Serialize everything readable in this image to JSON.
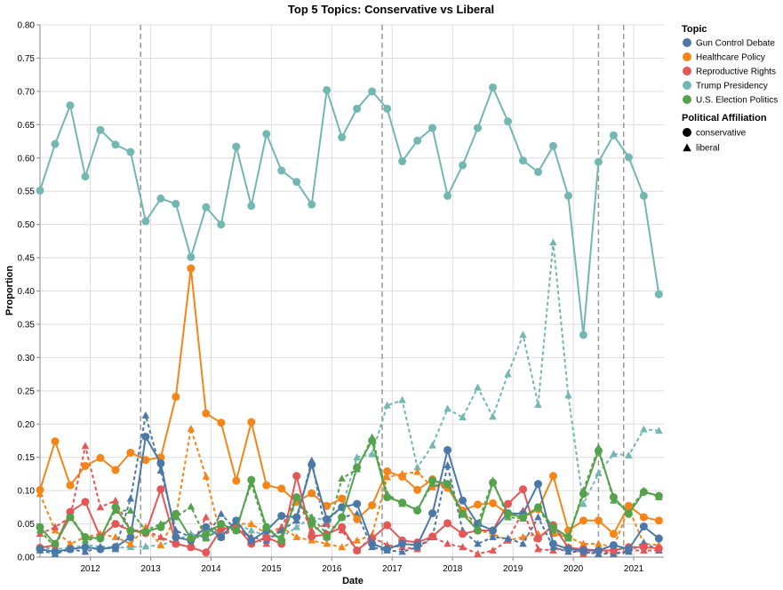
{
  "chart_data": {
    "type": "line",
    "title": "Top 5 Topics: Conservative vs Liberal",
    "xlabel": "Date",
    "ylabel": "Proportion",
    "ylim": [
      0,
      0.8
    ],
    "y_ticks": [
      "0.00",
      "0.05",
      "0.10",
      "0.15",
      "0.20",
      "0.25",
      "0.30",
      "0.35",
      "0.40",
      "0.45",
      "0.50",
      "0.55",
      "0.60",
      "0.65",
      "0.70",
      "0.75",
      "0.80"
    ],
    "x_ticks": [
      "2012",
      "2013",
      "2014",
      "2015",
      "2016",
      "2017",
      "2018",
      "2019",
      "2020",
      "2021"
    ],
    "xlim": [
      "2011-03",
      "2021-07"
    ],
    "vertical_rules": [
      "2012-11",
      "2016-11",
      "2020-06",
      "2020-11"
    ],
    "grid": true,
    "legend_position": "top-right",
    "legend": {
      "topic_title": "Topic",
      "affiliation_title": "Political Affiliation",
      "topics": [
        {
          "name": "Gun Control Debate",
          "color": "#4c78a8"
        },
        {
          "name": "Healthcare Policy",
          "color": "#f58518"
        },
        {
          "name": "Reproductive Rights",
          "color": "#e45756"
        },
        {
          "name": "Trump Presidency",
          "color": "#72b7b2"
        },
        {
          "name": "U.S. Election Politics",
          "color": "#54a24b"
        }
      ],
      "affiliations": [
        {
          "name": "conservative",
          "shape": "circle",
          "dash": "solid"
        },
        {
          "name": "liberal",
          "shape": "triangle",
          "dash": "dashed"
        }
      ]
    },
    "x": [
      "2011-03",
      "2011-06",
      "2011-09",
      "2011-12",
      "2012-03",
      "2012-06",
      "2012-09",
      "2012-12",
      "2013-03",
      "2013-06",
      "2013-09",
      "2013-12",
      "2014-03",
      "2014-06",
      "2014-09",
      "2014-12",
      "2015-03",
      "2015-06",
      "2015-09",
      "2015-12",
      "2016-03",
      "2016-06",
      "2016-09",
      "2016-12",
      "2017-03",
      "2017-06",
      "2017-09",
      "2017-12",
      "2018-03",
      "2018-06",
      "2018-09",
      "2018-12",
      "2019-03",
      "2019-06",
      "2019-09",
      "2019-12",
      "2020-03",
      "2020-06",
      "2020-09",
      "2020-12",
      "2021-03",
      "2021-06"
    ],
    "series": [
      {
        "topic": "Trump Presidency",
        "affiliation": "conservative",
        "values": [
          0.551,
          0.621,
          0.679,
          0.572,
          0.642,
          0.62,
          0.609,
          0.505,
          0.539,
          0.531,
          0.451,
          0.526,
          0.5,
          0.617,
          0.528,
          0.636,
          0.581,
          0.564,
          0.53,
          0.702,
          0.631,
          0.674,
          0.7,
          0.674,
          0.595,
          0.626,
          0.645,
          0.543,
          0.589,
          0.645,
          0.706,
          0.655,
          0.596,
          0.579,
          0.618,
          0.543,
          0.334,
          0.594,
          0.634,
          0.601,
          0.543,
          0.395
        ]
      },
      {
        "topic": "Trump Presidency",
        "affiliation": "liberal",
        "values": [
          0.015,
          0.012,
          0.014,
          0.018,
          0.016,
          0.014,
          0.015,
          0.016,
          0.018,
          0.025,
          0.035,
          0.03,
          0.04,
          0.05,
          0.04,
          0.032,
          0.03,
          0.045,
          0.06,
          0.055,
          0.075,
          0.15,
          0.155,
          0.228,
          0.236,
          0.135,
          0.168,
          0.223,
          0.21,
          0.255,
          0.211,
          0.275,
          0.334,
          0.229,
          0.473,
          0.243,
          0.08,
          0.126,
          0.155,
          0.153,
          0.192,
          0.19
        ]
      },
      {
        "topic": "Healthcare Policy",
        "affiliation": "conservative",
        "values": [
          0.101,
          0.174,
          0.108,
          0.137,
          0.149,
          0.131,
          0.157,
          0.146,
          0.15,
          0.241,
          0.434,
          0.216,
          0.202,
          0.115,
          0.203,
          0.108,
          0.103,
          0.083,
          0.096,
          0.077,
          0.088,
          0.057,
          0.078,
          0.129,
          0.121,
          0.101,
          0.117,
          0.104,
          0.07,
          0.079,
          0.081,
          0.065,
          0.06,
          0.072,
          0.122,
          0.04,
          0.055,
          0.055,
          0.035,
          0.077,
          0.06,
          0.055
        ]
      },
      {
        "topic": "Healthcare Policy",
        "affiliation": "liberal",
        "values": [
          0.095,
          0.04,
          0.02,
          0.03,
          0.035,
          0.03,
          0.02,
          0.045,
          0.018,
          0.06,
          0.193,
          0.121,
          0.03,
          0.05,
          0.05,
          0.035,
          0.045,
          0.03,
          0.025,
          0.02,
          0.015,
          0.025,
          0.033,
          0.12,
          0.125,
          0.128,
          0.105,
          0.11,
          0.07,
          0.04,
          0.035,
          0.025,
          0.03,
          0.035,
          0.035,
          0.03,
          0.02,
          0.02,
          0.015,
          0.073,
          0.02,
          0.018
        ]
      },
      {
        "topic": "Reproductive Rights",
        "affiliation": "conservative",
        "values": [
          0.014,
          0.018,
          0.068,
          0.083,
          0.03,
          0.05,
          0.04,
          0.036,
          0.102,
          0.02,
          0.015,
          0.007,
          0.042,
          0.046,
          0.02,
          0.03,
          0.02,
          0.122,
          0.031,
          0.034,
          0.045,
          0.01,
          0.028,
          0.048,
          0.025,
          0.022,
          0.031,
          0.051,
          0.035,
          0.04,
          0.04,
          0.08,
          0.102,
          0.028,
          0.048,
          0.014,
          0.012,
          0.01,
          0.01,
          0.015,
          0.015,
          0.013
        ]
      },
      {
        "topic": "Reproductive Rights",
        "affiliation": "liberal",
        "values": [
          0.035,
          0.045,
          0.06,
          0.167,
          0.075,
          0.085,
          0.04,
          0.04,
          0.03,
          0.02,
          0.015,
          0.06,
          0.03,
          0.045,
          0.03,
          0.02,
          0.045,
          0.09,
          0.04,
          0.05,
          0.04,
          0.01,
          0.03,
          0.018,
          0.015,
          0.012,
          0.03,
          0.02,
          0.015,
          0.005,
          0.01,
          0.025,
          0.07,
          0.012,
          0.01,
          0.015,
          0.005,
          0.01,
          0.005,
          0.01,
          0.01,
          0.01
        ]
      },
      {
        "topic": "Gun Control Debate",
        "affiliation": "conservative",
        "values": [
          0.012,
          0.008,
          0.012,
          0.015,
          0.012,
          0.015,
          0.03,
          0.181,
          0.141,
          0.03,
          0.025,
          0.045,
          0.03,
          0.055,
          0.025,
          0.04,
          0.062,
          0.06,
          0.139,
          0.057,
          0.075,
          0.08,
          0.02,
          0.012,
          0.02,
          0.018,
          0.066,
          0.161,
          0.085,
          0.05,
          0.04,
          0.066,
          0.065,
          0.11,
          0.02,
          0.012,
          0.01,
          0.01,
          0.018,
          0.012,
          0.046,
          0.028
        ]
      },
      {
        "topic": "Gun Control Debate",
        "affiliation": "liberal",
        "values": [
          0.01,
          0.005,
          0.012,
          0.008,
          0.015,
          0.012,
          0.088,
          0.213,
          0.13,
          0.04,
          0.03,
          0.03,
          0.065,
          0.04,
          0.03,
          0.025,
          0.04,
          0.055,
          0.145,
          0.03,
          0.06,
          0.065,
          0.015,
          0.01,
          0.008,
          0.015,
          0.03,
          0.138,
          0.04,
          0.02,
          0.03,
          0.028,
          0.02,
          0.06,
          0.015,
          0.008,
          0.008,
          0.005,
          0.005,
          0.008,
          0.022,
          0.01
        ]
      },
      {
        "topic": "U.S. Election Politics",
        "affiliation": "conservative",
        "values": [
          0.045,
          0.02,
          0.06,
          0.03,
          0.028,
          0.075,
          0.04,
          0.038,
          0.045,
          0.065,
          0.028,
          0.035,
          0.05,
          0.04,
          0.116,
          0.045,
          0.025,
          0.09,
          0.05,
          0.03,
          0.06,
          0.135,
          0.175,
          0.09,
          0.082,
          0.07,
          0.115,
          0.11,
          0.065,
          0.04,
          0.112,
          0.065,
          0.06,
          0.075,
          0.045,
          0.03,
          0.095,
          0.16,
          0.09,
          0.065,
          0.098,
          0.092
        ]
      },
      {
        "topic": "U.S. Election Politics",
        "affiliation": "liberal",
        "values": [
          0.04,
          0.015,
          0.065,
          0.025,
          0.03,
          0.07,
          0.07,
          0.04,
          0.05,
          0.06,
          0.076,
          0.028,
          0.045,
          0.045,
          0.11,
          0.04,
          0.03,
          0.085,
          0.06,
          0.035,
          0.118,
          0.132,
          0.18,
          0.095,
          0.08,
          0.072,
          0.11,
          0.105,
          0.068,
          0.05,
          0.115,
          0.06,
          0.058,
          0.073,
          0.04,
          0.028,
          0.1,
          0.165,
          0.085,
          0.07,
          0.1,
          0.09
        ]
      }
    ]
  }
}
